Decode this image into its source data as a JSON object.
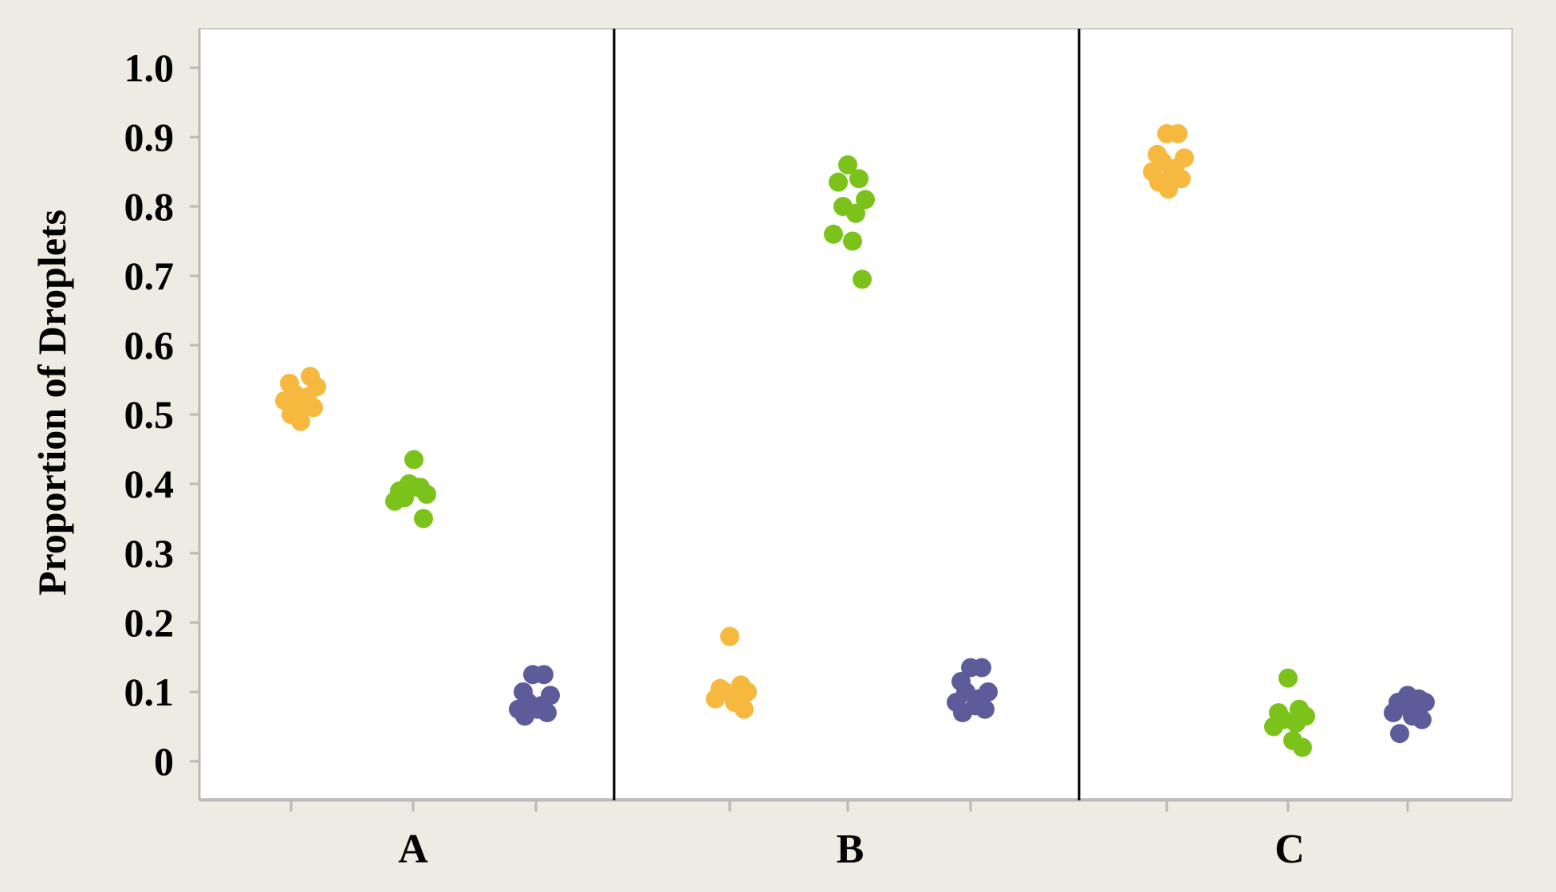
{
  "chart_data": {
    "type": "scatter",
    "title": "",
    "xlabel": "",
    "ylabel": "Proportion of Droplets",
    "ylim": [
      -0.06,
      1.06
    ],
    "yticks": [
      0,
      0.1,
      0.2,
      0.3,
      0.4,
      0.5,
      0.6,
      0.7,
      0.8,
      0.9,
      1.0
    ],
    "ytick_labels": [
      "0",
      "0.1",
      "0.2",
      "0.3",
      "0.4",
      "0.5",
      "0.6",
      "0.7",
      "0.8",
      "0.9",
      "1.0"
    ],
    "grid": false,
    "legend": "none",
    "panels": [
      "A",
      "B",
      "C"
    ],
    "series": [
      {
        "color": "#f7b840",
        "points": {
          "A": [
            0.505,
            0.555,
            0.545,
            0.54,
            0.53,
            0.525,
            0.52,
            0.515,
            0.51,
            0.5,
            0.49
          ],
          "B": [
            0.18,
            0.11,
            0.105,
            0.1,
            0.1,
            0.095,
            0.09,
            0.085,
            0.075
          ],
          "C": [
            0.905,
            0.905,
            0.875,
            0.87,
            0.865,
            0.855,
            0.85,
            0.845,
            0.84,
            0.835,
            0.825
          ]
        }
      },
      {
        "color": "#7bc31b",
        "points": {
          "A": [
            0.4,
            0.395,
            0.39,
            0.385,
            0.38,
            0.395,
            0.375,
            0.435,
            0.35
          ],
          "B": [
            0.86,
            0.84,
            0.835,
            0.81,
            0.8,
            0.79,
            0.76,
            0.75,
            0.695
          ],
          "C": [
            0.12,
            0.075,
            0.07,
            0.065,
            0.06,
            0.055,
            0.05,
            0.03,
            0.02
          ]
        }
      },
      {
        "color": "#5d5c9b",
        "points": {
          "A": [
            0.125,
            0.125,
            0.1,
            0.095,
            0.085,
            0.08,
            0.075,
            0.075,
            0.07,
            0.065
          ],
          "B": [
            0.135,
            0.135,
            0.115,
            0.1,
            0.1,
            0.09,
            0.085,
            0.08,
            0.075,
            0.07
          ],
          "C": [
            0.095,
            0.09,
            0.085,
            0.085,
            0.08,
            0.075,
            0.07,
            0.065,
            0.06,
            0.04
          ]
        }
      }
    ]
  },
  "colors": {
    "frame": "#eeebe3",
    "plot_bg": "#ffffff",
    "axis": "#b9b9b9",
    "divider": "#000000"
  }
}
